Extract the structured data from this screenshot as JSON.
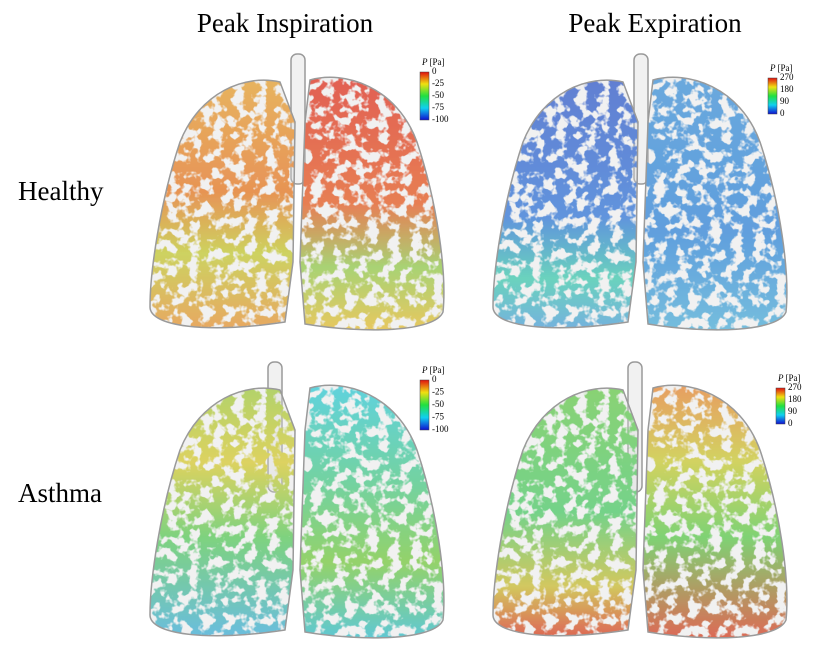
{
  "columns": [
    "Peak Inspiration",
    "Peak Expiration"
  ],
  "rows": [
    "Healthy",
    "Asthma"
  ],
  "panels": [
    {
      "legend_symbol": "P",
      "legend_unit": "[Pa]",
      "legend_ticks": [
        0,
        -25,
        -50,
        -75,
        -100
      ]
    },
    {
      "legend_symbol": "P",
      "legend_unit": "[Pa]",
      "legend_ticks": [
        270,
        180,
        90,
        0
      ]
    },
    {
      "legend_symbol": "P",
      "legend_unit": "[Pa]",
      "legend_ticks": [
        0,
        -25,
        -50,
        -75,
        -100
      ]
    },
    {
      "legend_symbol": "P",
      "legend_unit": "[Pa]",
      "legend_ticks": [
        270,
        180,
        90,
        0
      ]
    }
  ]
}
